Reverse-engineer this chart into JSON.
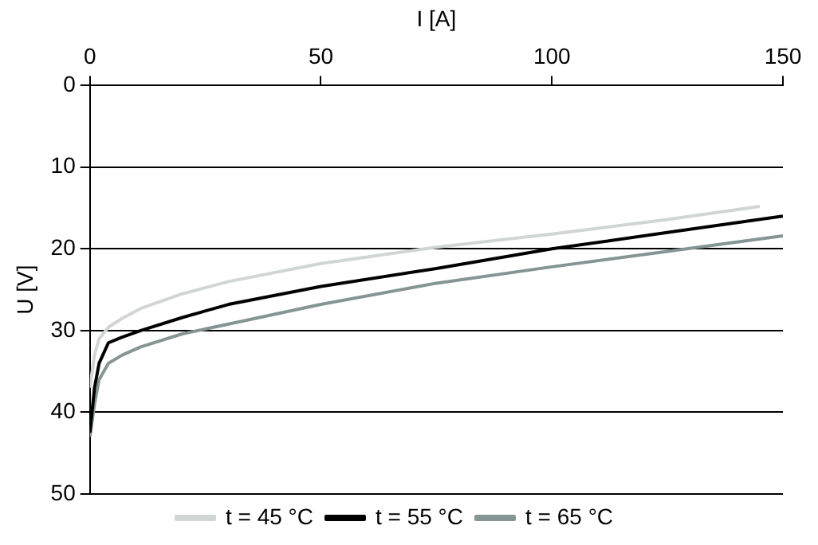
{
  "chart_data": {
    "type": "line",
    "xlabel": "I [A]",
    "ylabel": "U [V]",
    "xlim": [
      0,
      150
    ],
    "xticks": [
      0,
      50,
      100,
      150
    ],
    "ylim": [
      50,
      0
    ],
    "yticks": [
      0,
      10,
      20,
      30,
      40,
      50
    ],
    "grid": "y",
    "legend": "bottom",
    "marker": "none",
    "series": [
      {
        "name": "t = 45 °C",
        "color": "#d0d6d4",
        "x": [
          0,
          1,
          2,
          4,
          7,
          11,
          20,
          30,
          50,
          75,
          100,
          125,
          145
        ],
        "values": [
          37,
          33,
          31,
          29.6,
          28.5,
          27.3,
          25.5,
          24,
          21.8,
          19.8,
          18.2,
          16.4,
          14.8
        ]
      },
      {
        "name": "t = 55 °C",
        "color": "#000000",
        "x": [
          0,
          1,
          2,
          4,
          7,
          11,
          20,
          30,
          50,
          75,
          100,
          125,
          150
        ],
        "values": [
          42.5,
          37,
          34,
          31.5,
          30.8,
          30,
          28.4,
          26.8,
          24.6,
          22.4,
          20,
          18,
          16
        ]
      },
      {
        "name": "t = 65 °C",
        "color": "#849593",
        "x": [
          0,
          1,
          2,
          4,
          7,
          11,
          20,
          30,
          50,
          75,
          100,
          125,
          150
        ],
        "values": [
          43,
          39,
          36,
          34,
          33,
          32,
          30.4,
          29.2,
          26.8,
          24.2,
          22.2,
          20.3,
          18.4
        ]
      }
    ]
  }
}
